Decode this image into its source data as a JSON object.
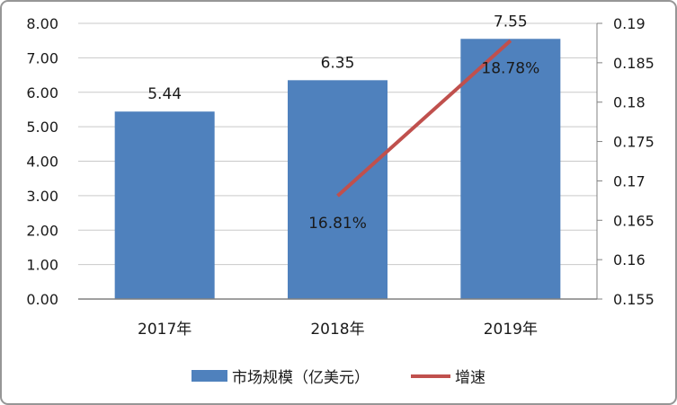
{
  "chart_data": {
    "type": "combo",
    "title": "",
    "categories": [
      "2017年",
      "2018年",
      "2019年"
    ],
    "series": [
      {
        "name": "市场规模（亿美元）",
        "type": "bar",
        "axis": "left",
        "values": [
          5.44,
          6.35,
          7.55
        ],
        "labels": [
          "5.44",
          "6.35",
          "7.55"
        ],
        "color": "#4F81BD"
      },
      {
        "name": "增速",
        "type": "line",
        "axis": "right",
        "values": [
          null,
          0.1681,
          0.1878
        ],
        "labels": [
          null,
          "16.81%",
          "18.78%"
        ],
        "color": "#C0504D"
      }
    ],
    "left_axis": {
      "min": 0,
      "max": 8,
      "tick_labels": [
        "8.00",
        "7.00",
        "6.00",
        "5.00",
        "4.00",
        "3.00",
        "2.00",
        "1.00",
        "0.00"
      ]
    },
    "right_axis": {
      "min": 0.155,
      "max": 0.19,
      "tick_labels": [
        "0.19",
        "0.185",
        "0.18",
        "0.175",
        "0.17",
        "0.165",
        "0.16",
        "0.155"
      ]
    },
    "grid": true,
    "legend_position": "bottom",
    "colors": {
      "gridline": "#C9C9C9",
      "axis_line": "#808080",
      "text": "#1A1A1A",
      "border": "#969696",
      "background": "#FFFFFF"
    }
  }
}
